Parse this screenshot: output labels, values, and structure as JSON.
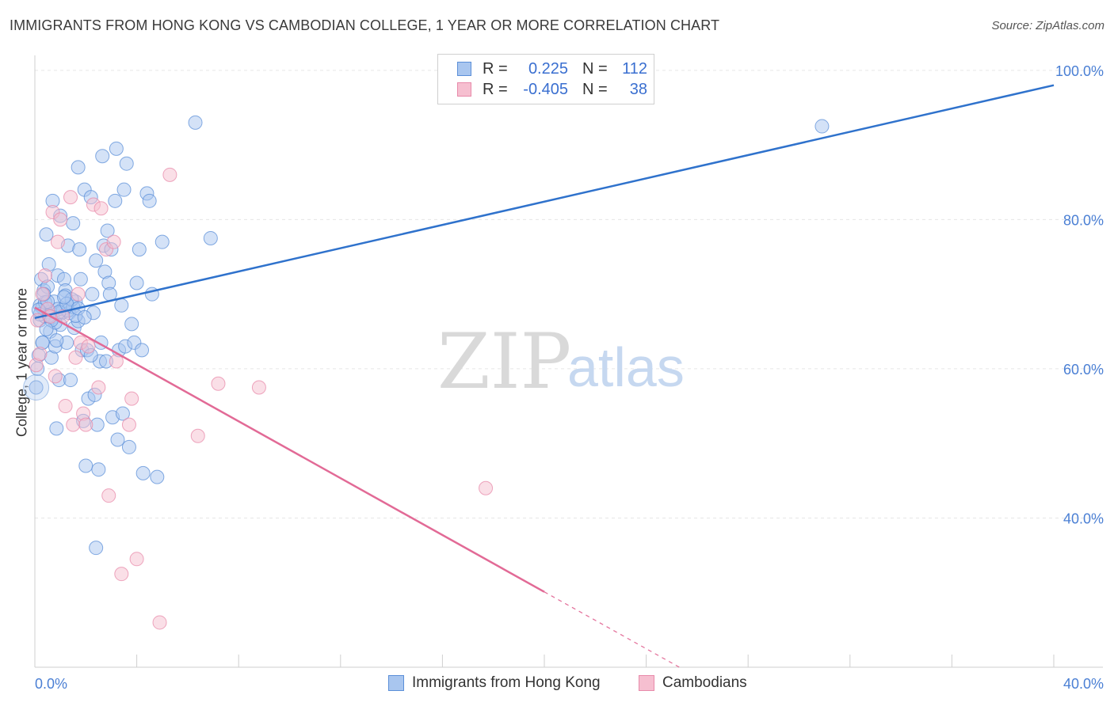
{
  "title": "IMMIGRANTS FROM HONG KONG VS CAMBODIAN COLLEGE, 1 YEAR OR MORE CORRELATION CHART",
  "source": "Source: ZipAtlas.com",
  "watermark": {
    "zip": "ZIP",
    "atlas": "atlas"
  },
  "legend": {
    "rows": [
      {
        "r_label": "R =",
        "r_value": "0.225",
        "n_label": "N =",
        "n_value": "112"
      },
      {
        "r_label": "R =",
        "r_value": "-0.405",
        "n_label": "N =",
        "n_value": "38"
      }
    ]
  },
  "colors": {
    "blue_fill": "#a9c6ef",
    "blue_stroke": "#5b8fd8",
    "blue_line": "#2f72cc",
    "pink_fill": "#f6bfd0",
    "pink_stroke": "#e88aaa",
    "pink_line": "#e26a96",
    "grid": "#e6e6e6",
    "tick_text": "#4a7fd4"
  },
  "chart_data": {
    "type": "scatter",
    "xlabel": "",
    "ylabel": "College, 1 year or more",
    "xlim": [
      0,
      40
    ],
    "ylim": [
      20,
      102
    ],
    "x_tick_labels": [
      "0.0%",
      "40.0%"
    ],
    "y_ticks": [
      40,
      60,
      80,
      100
    ],
    "y_tick_labels": [
      "40.0%",
      "60.0%",
      "80.0%",
      "100.0%"
    ],
    "series": [
      {
        "name": "Immigrants from Hong Kong",
        "color": "blue",
        "trend": {
          "x": [
            0,
            40
          ],
          "y": [
            66.8,
            98.0
          ],
          "dashed_from": null
        },
        "points": [
          [
            0.05,
            57.5
          ],
          [
            0.1,
            60.0
          ],
          [
            0.15,
            61.8
          ],
          [
            0.2,
            66.5
          ],
          [
            0.2,
            68.5
          ],
          [
            0.25,
            72.0
          ],
          [
            0.3,
            63.5
          ],
          [
            0.35,
            70.5
          ],
          [
            0.4,
            67.0
          ],
          [
            0.45,
            78.0
          ],
          [
            0.5,
            71.0
          ],
          [
            0.55,
            74.0
          ],
          [
            0.6,
            65.0
          ],
          [
            0.65,
            61.5
          ],
          [
            0.7,
            82.5
          ],
          [
            0.75,
            69.0
          ],
          [
            0.8,
            63.0
          ],
          [
            0.85,
            52.0
          ],
          [
            0.9,
            72.5
          ],
          [
            0.95,
            58.5
          ],
          [
            1.0,
            80.5
          ],
          [
            1.05,
            67.5
          ],
          [
            1.1,
            68.0
          ],
          [
            1.15,
            72.0
          ],
          [
            1.2,
            70.5
          ],
          [
            1.25,
            63.5
          ],
          [
            1.3,
            76.5
          ],
          [
            1.35,
            67.5
          ],
          [
            1.4,
            58.5
          ],
          [
            1.5,
            79.5
          ],
          [
            1.55,
            65.5
          ],
          [
            1.6,
            69.0
          ],
          [
            1.7,
            87.0
          ],
          [
            1.75,
            76.0
          ],
          [
            1.8,
            72.0
          ],
          [
            1.85,
            62.5
          ],
          [
            1.9,
            53.0
          ],
          [
            1.95,
            84.0
          ],
          [
            2.0,
            47.0
          ],
          [
            2.05,
            62.5
          ],
          [
            2.1,
            56.0
          ],
          [
            2.2,
            83.0
          ],
          [
            2.25,
            70.0
          ],
          [
            2.3,
            67.5
          ],
          [
            2.35,
            56.5
          ],
          [
            2.4,
            74.5
          ],
          [
            2.45,
            52.5
          ],
          [
            2.5,
            46.5
          ],
          [
            2.55,
            61.0
          ],
          [
            2.6,
            63.5
          ],
          [
            2.65,
            88.5
          ],
          [
            2.7,
            76.5
          ],
          [
            2.75,
            73.0
          ],
          [
            2.8,
            61.0
          ],
          [
            2.85,
            78.5
          ],
          [
            2.9,
            71.5
          ],
          [
            2.95,
            70.0
          ],
          [
            3.0,
            76.0
          ],
          [
            3.05,
            53.5
          ],
          [
            3.15,
            82.5
          ],
          [
            3.2,
            89.5
          ],
          [
            3.25,
            50.5
          ],
          [
            3.3,
            62.5
          ],
          [
            3.4,
            68.5
          ],
          [
            3.45,
            54.0
          ],
          [
            3.5,
            84.0
          ],
          [
            3.55,
            63.0
          ],
          [
            3.6,
            87.5
          ],
          [
            3.7,
            49.5
          ],
          [
            3.8,
            66.0
          ],
          [
            3.9,
            63.5
          ],
          [
            4.0,
            71.5
          ],
          [
            4.1,
            76.0
          ],
          [
            4.2,
            62.5
          ],
          [
            4.25,
            46.0
          ],
          [
            4.4,
            83.5
          ],
          [
            4.5,
            82.5
          ],
          [
            4.6,
            70.0
          ],
          [
            4.8,
            45.5
          ],
          [
            5.0,
            77.0
          ],
          [
            6.3,
            93.0
          ],
          [
            6.9,
            77.5
          ],
          [
            0.3,
            68.2
          ],
          [
            0.6,
            67.6
          ],
          [
            0.9,
            68.0
          ],
          [
            1.3,
            67.8
          ],
          [
            1.5,
            68.3
          ],
          [
            1.7,
            66.4
          ],
          [
            2.4,
            36.0
          ],
          [
            1.2,
            69.8
          ],
          [
            0.4,
            68.9
          ],
          [
            0.7,
            66.9
          ],
          [
            1.0,
            65.9
          ],
          [
            0.2,
            67.3
          ],
          [
            1.6,
            67.1
          ],
          [
            0.8,
            66.2
          ],
          [
            1.45,
            69.3
          ],
          [
            0.5,
            69.0
          ],
          [
            0.95,
            67.6
          ],
          [
            0.55,
            67.1
          ],
          [
            1.25,
            68.7
          ],
          [
            0.15,
            67.9
          ],
          [
            1.7,
            68.1
          ],
          [
            1.95,
            66.9
          ],
          [
            0.35,
            70.0
          ],
          [
            0.65,
            66.5
          ],
          [
            1.15,
            69.6
          ],
          [
            0.3,
            63.5
          ],
          [
            0.85,
            63.8
          ],
          [
            0.45,
            65.3
          ],
          [
            2.2,
            61.8
          ],
          [
            30.9,
            92.5
          ]
        ]
      },
      {
        "name": "Cambodians",
        "color": "pink",
        "trend": {
          "x": [
            0,
            25.3
          ],
          "y": [
            68.2,
            20.0
          ],
          "dashed_from": 20.0
        },
        "points": [
          [
            0.05,
            60.5
          ],
          [
            0.1,
            66.5
          ],
          [
            0.2,
            62.0
          ],
          [
            0.3,
            70.0
          ],
          [
            0.4,
            72.5
          ],
          [
            0.5,
            68.0
          ],
          [
            0.6,
            67.0
          ],
          [
            0.7,
            81.0
          ],
          [
            0.8,
            59.0
          ],
          [
            0.9,
            77.0
          ],
          [
            1.0,
            80.0
          ],
          [
            1.1,
            67.0
          ],
          [
            1.2,
            55.0
          ],
          [
            1.4,
            83.0
          ],
          [
            1.5,
            52.5
          ],
          [
            1.6,
            61.5
          ],
          [
            1.7,
            70.0
          ],
          [
            1.8,
            63.5
          ],
          [
            1.9,
            54.0
          ],
          [
            2.0,
            52.5
          ],
          [
            2.1,
            63.0
          ],
          [
            2.3,
            82.0
          ],
          [
            2.5,
            57.5
          ],
          [
            2.6,
            81.5
          ],
          [
            2.8,
            76.0
          ],
          [
            2.9,
            43.0
          ],
          [
            3.1,
            77.0
          ],
          [
            3.2,
            61.0
          ],
          [
            3.4,
            32.5
          ],
          [
            3.7,
            52.5
          ],
          [
            3.8,
            56.0
          ],
          [
            4.0,
            34.5
          ],
          [
            4.9,
            26.0
          ],
          [
            5.3,
            86.0
          ],
          [
            6.4,
            51.0
          ],
          [
            7.2,
            58.0
          ],
          [
            8.8,
            57.5
          ],
          [
            17.7,
            44.0
          ]
        ]
      }
    ]
  },
  "bottom_legend": [
    {
      "label": "Immigrants from Hong Kong"
    },
    {
      "label": "Cambodians"
    }
  ]
}
